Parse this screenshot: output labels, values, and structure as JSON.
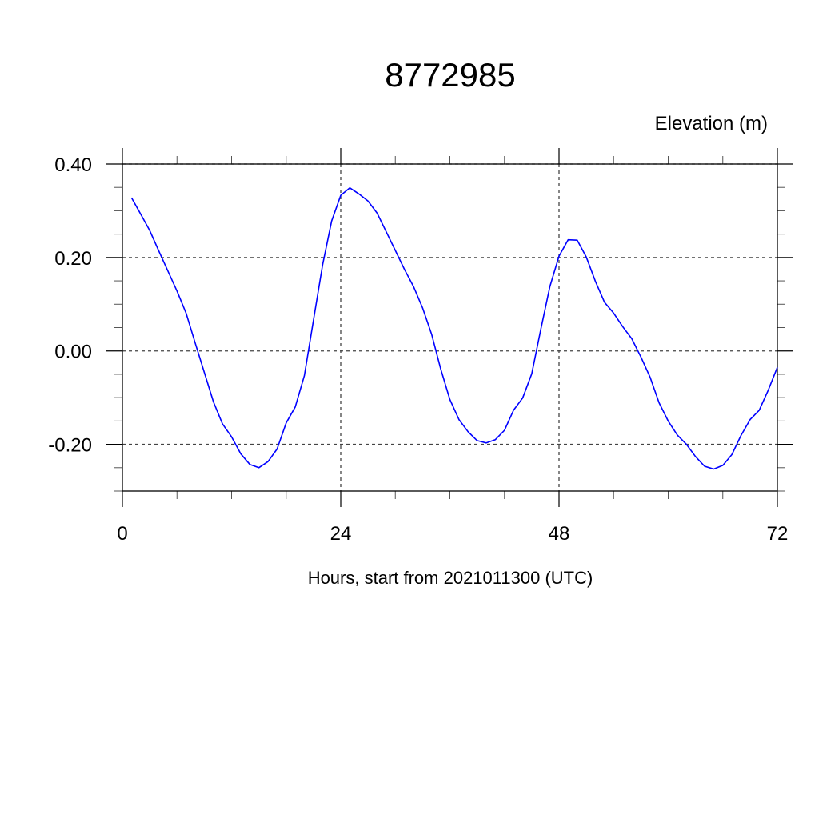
{
  "chart_data": {
    "type": "line",
    "title": "8772985",
    "ylabel": "Elevation (m)",
    "xlabel": "Hours, start from 2021011300 (UTC)",
    "xlim": [
      0,
      72
    ],
    "ylim": [
      -0.3,
      0.4
    ],
    "x_ticks": [
      0,
      24,
      48,
      72
    ],
    "x_tick_labels": [
      "0",
      "24",
      "48",
      "72"
    ],
    "x_minor_step": 6,
    "y_ticks": [
      0.4,
      0.2,
      0.0,
      -0.2
    ],
    "y_tick_labels": [
      "0.40",
      "0.20",
      "0.00",
      "-0.20"
    ],
    "y_minor_step": 0.05,
    "grid": true,
    "grid_style": "dashed",
    "series": [
      {
        "color": "#0000ff",
        "x": [
          1,
          2,
          3,
          4,
          5,
          6,
          7,
          8,
          9,
          10,
          11,
          12,
          13,
          14,
          15,
          16,
          17,
          18,
          19,
          20,
          21,
          22,
          23,
          24,
          25,
          26,
          27,
          28,
          29,
          30,
          31,
          32,
          33,
          34,
          35,
          36,
          37,
          38,
          39,
          40,
          41,
          42,
          43,
          44,
          45,
          46,
          47,
          48,
          49,
          50,
          51,
          52,
          53,
          54,
          55,
          56,
          57,
          58,
          59,
          60,
          61,
          62,
          63,
          64,
          65,
          66,
          67,
          68,
          69,
          70,
          71,
          72
        ],
        "values": [
          0.328,
          0.293,
          0.258,
          0.214,
          0.171,
          0.128,
          0.081,
          0.017,
          -0.046,
          -0.109,
          -0.156,
          -0.184,
          -0.22,
          -0.243,
          -0.25,
          -0.237,
          -0.21,
          -0.154,
          -0.12,
          -0.053,
          0.066,
          0.184,
          0.278,
          0.333,
          0.349,
          0.336,
          0.321,
          0.295,
          0.255,
          0.215,
          0.175,
          0.138,
          0.092,
          0.035,
          -0.039,
          -0.104,
          -0.147,
          -0.173,
          -0.192,
          -0.197,
          -0.19,
          -0.17,
          -0.127,
          -0.101,
          -0.049,
          0.047,
          0.138,
          0.203,
          0.238,
          0.237,
          0.201,
          0.149,
          0.104,
          0.081,
          0.052,
          0.026,
          -0.013,
          -0.056,
          -0.111,
          -0.15,
          -0.18,
          -0.2,
          -0.226,
          -0.247,
          -0.253,
          -0.245,
          -0.222,
          -0.181,
          -0.147,
          -0.127,
          -0.084,
          -0.035
        ]
      }
    ]
  }
}
